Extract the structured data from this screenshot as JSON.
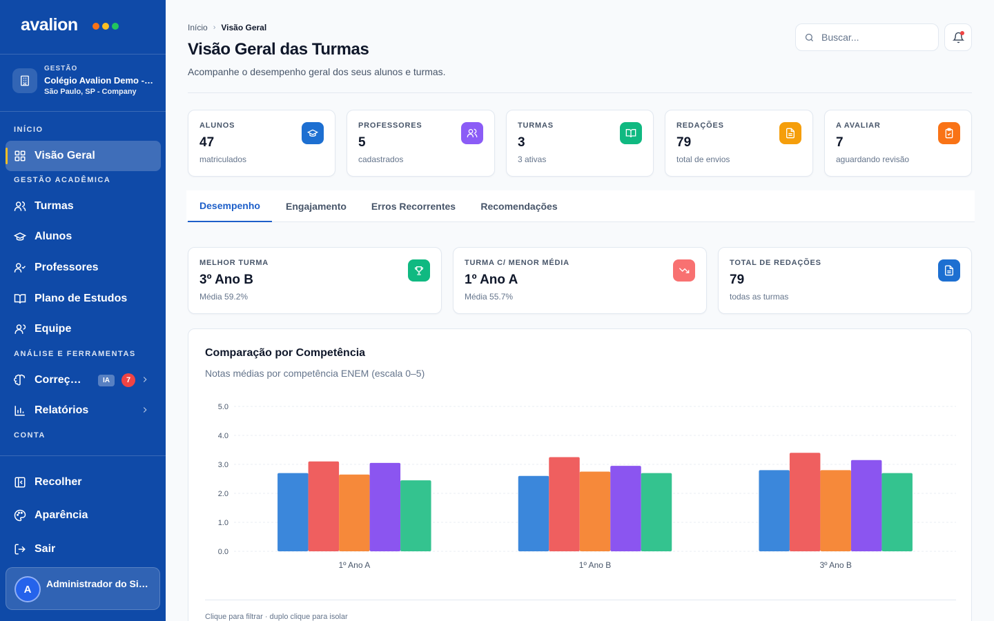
{
  "sidebar": {
    "logo": "avalion",
    "logo_dots": [
      "#f97316",
      "#fbbf24",
      "#22c55e"
    ],
    "org": {
      "kicker": "GESTÃO",
      "name": "Colégio Avalion Demo - Company",
      "location": "São Paulo, SP - Company"
    },
    "sections": {
      "inicio": "INÍCIO",
      "academica": "GESTÃO ACADÊMICA",
      "analise": "ANÁLISE E FERRAMENTAS",
      "conta": "CONTA"
    },
    "items": {
      "overview": "Visão Geral",
      "classes": "Turmas",
      "students": "Alunos",
      "teachers": "Professores",
      "study_plan": "Plano de Estudos",
      "team": "Equipe",
      "corrections": "Correções",
      "corrections_badge": "IA",
      "corrections_count": "7",
      "reports": "Relatórios",
      "collapse": "Recolher",
      "appearance": "Aparência",
      "logout": "Sair"
    },
    "user": {
      "initial": "A",
      "name": "Administrador do Sistema"
    }
  },
  "header": {
    "breadcrumb_home": "Início",
    "breadcrumb_current": "Visão Geral",
    "title": "Visão Geral das Turmas",
    "subtitle": "Acompanhe o desempenho geral dos seus alunos e turmas.",
    "search_placeholder": "Buscar..."
  },
  "stats": [
    {
      "label": "ALUNOS",
      "value": "47",
      "sub": "matriculados",
      "color": "#1d6fd1"
    },
    {
      "label": "PROFESSORES",
      "value": "5",
      "sub": "cadastrados",
      "color": "#8b5cf6"
    },
    {
      "label": "TURMAS",
      "value": "3",
      "sub": "3 ativas",
      "color": "#10b981"
    },
    {
      "label": "REDAÇÕES",
      "value": "79",
      "sub": "total de envios",
      "color": "#f59e0b"
    },
    {
      "label": "A AVALIAR",
      "value": "7",
      "sub": "aguardando revisão",
      "color": "#f97316"
    }
  ],
  "tabs": [
    "Desempenho",
    "Engajamento",
    "Erros Recorrentes",
    "Recomendações"
  ],
  "highlights": [
    {
      "label": "MELHOR TURMA",
      "value": "3º Ano B",
      "sub": "Média 59.2%",
      "color": "#10b981"
    },
    {
      "label": "TURMA C/ MENOR MÉDIA",
      "value": "1º Ano A",
      "sub": "Média 55.7%",
      "color": "#f87171"
    },
    {
      "label": "TOTAL DE REDAÇÕES",
      "value": "79",
      "sub": "todas as turmas",
      "color": "#1d6fd1"
    }
  ],
  "chart": {
    "title": "Comparação por Competência",
    "subtitle": "Notas médias por competência ENEM (escala 0–5)",
    "hint": "Clique para filtrar · duplo clique para isolar"
  },
  "chart_data": {
    "type": "bar",
    "categories": [
      "1º Ano A",
      "1º Ano B",
      "3º Ano B"
    ],
    "series": [
      {
        "values": [
          2.7,
          2.6,
          2.8
        ],
        "color": "#3b87db"
      },
      {
        "values": [
          3.1,
          3.25,
          3.4
        ],
        "color": "#ef5f5f"
      },
      {
        "values": [
          2.65,
          2.75,
          2.8
        ],
        "color": "#f6893a"
      },
      {
        "values": [
          3.05,
          2.95,
          3.15
        ],
        "color": "#8b55f0"
      },
      {
        "values": [
          2.45,
          2.7,
          2.7
        ],
        "color": "#34c38f"
      }
    ],
    "yticks": [
      "0.0",
      "1.0",
      "2.0",
      "3.0",
      "4.0",
      "5.0"
    ],
    "ylim": [
      0,
      5
    ],
    "grid": true
  }
}
